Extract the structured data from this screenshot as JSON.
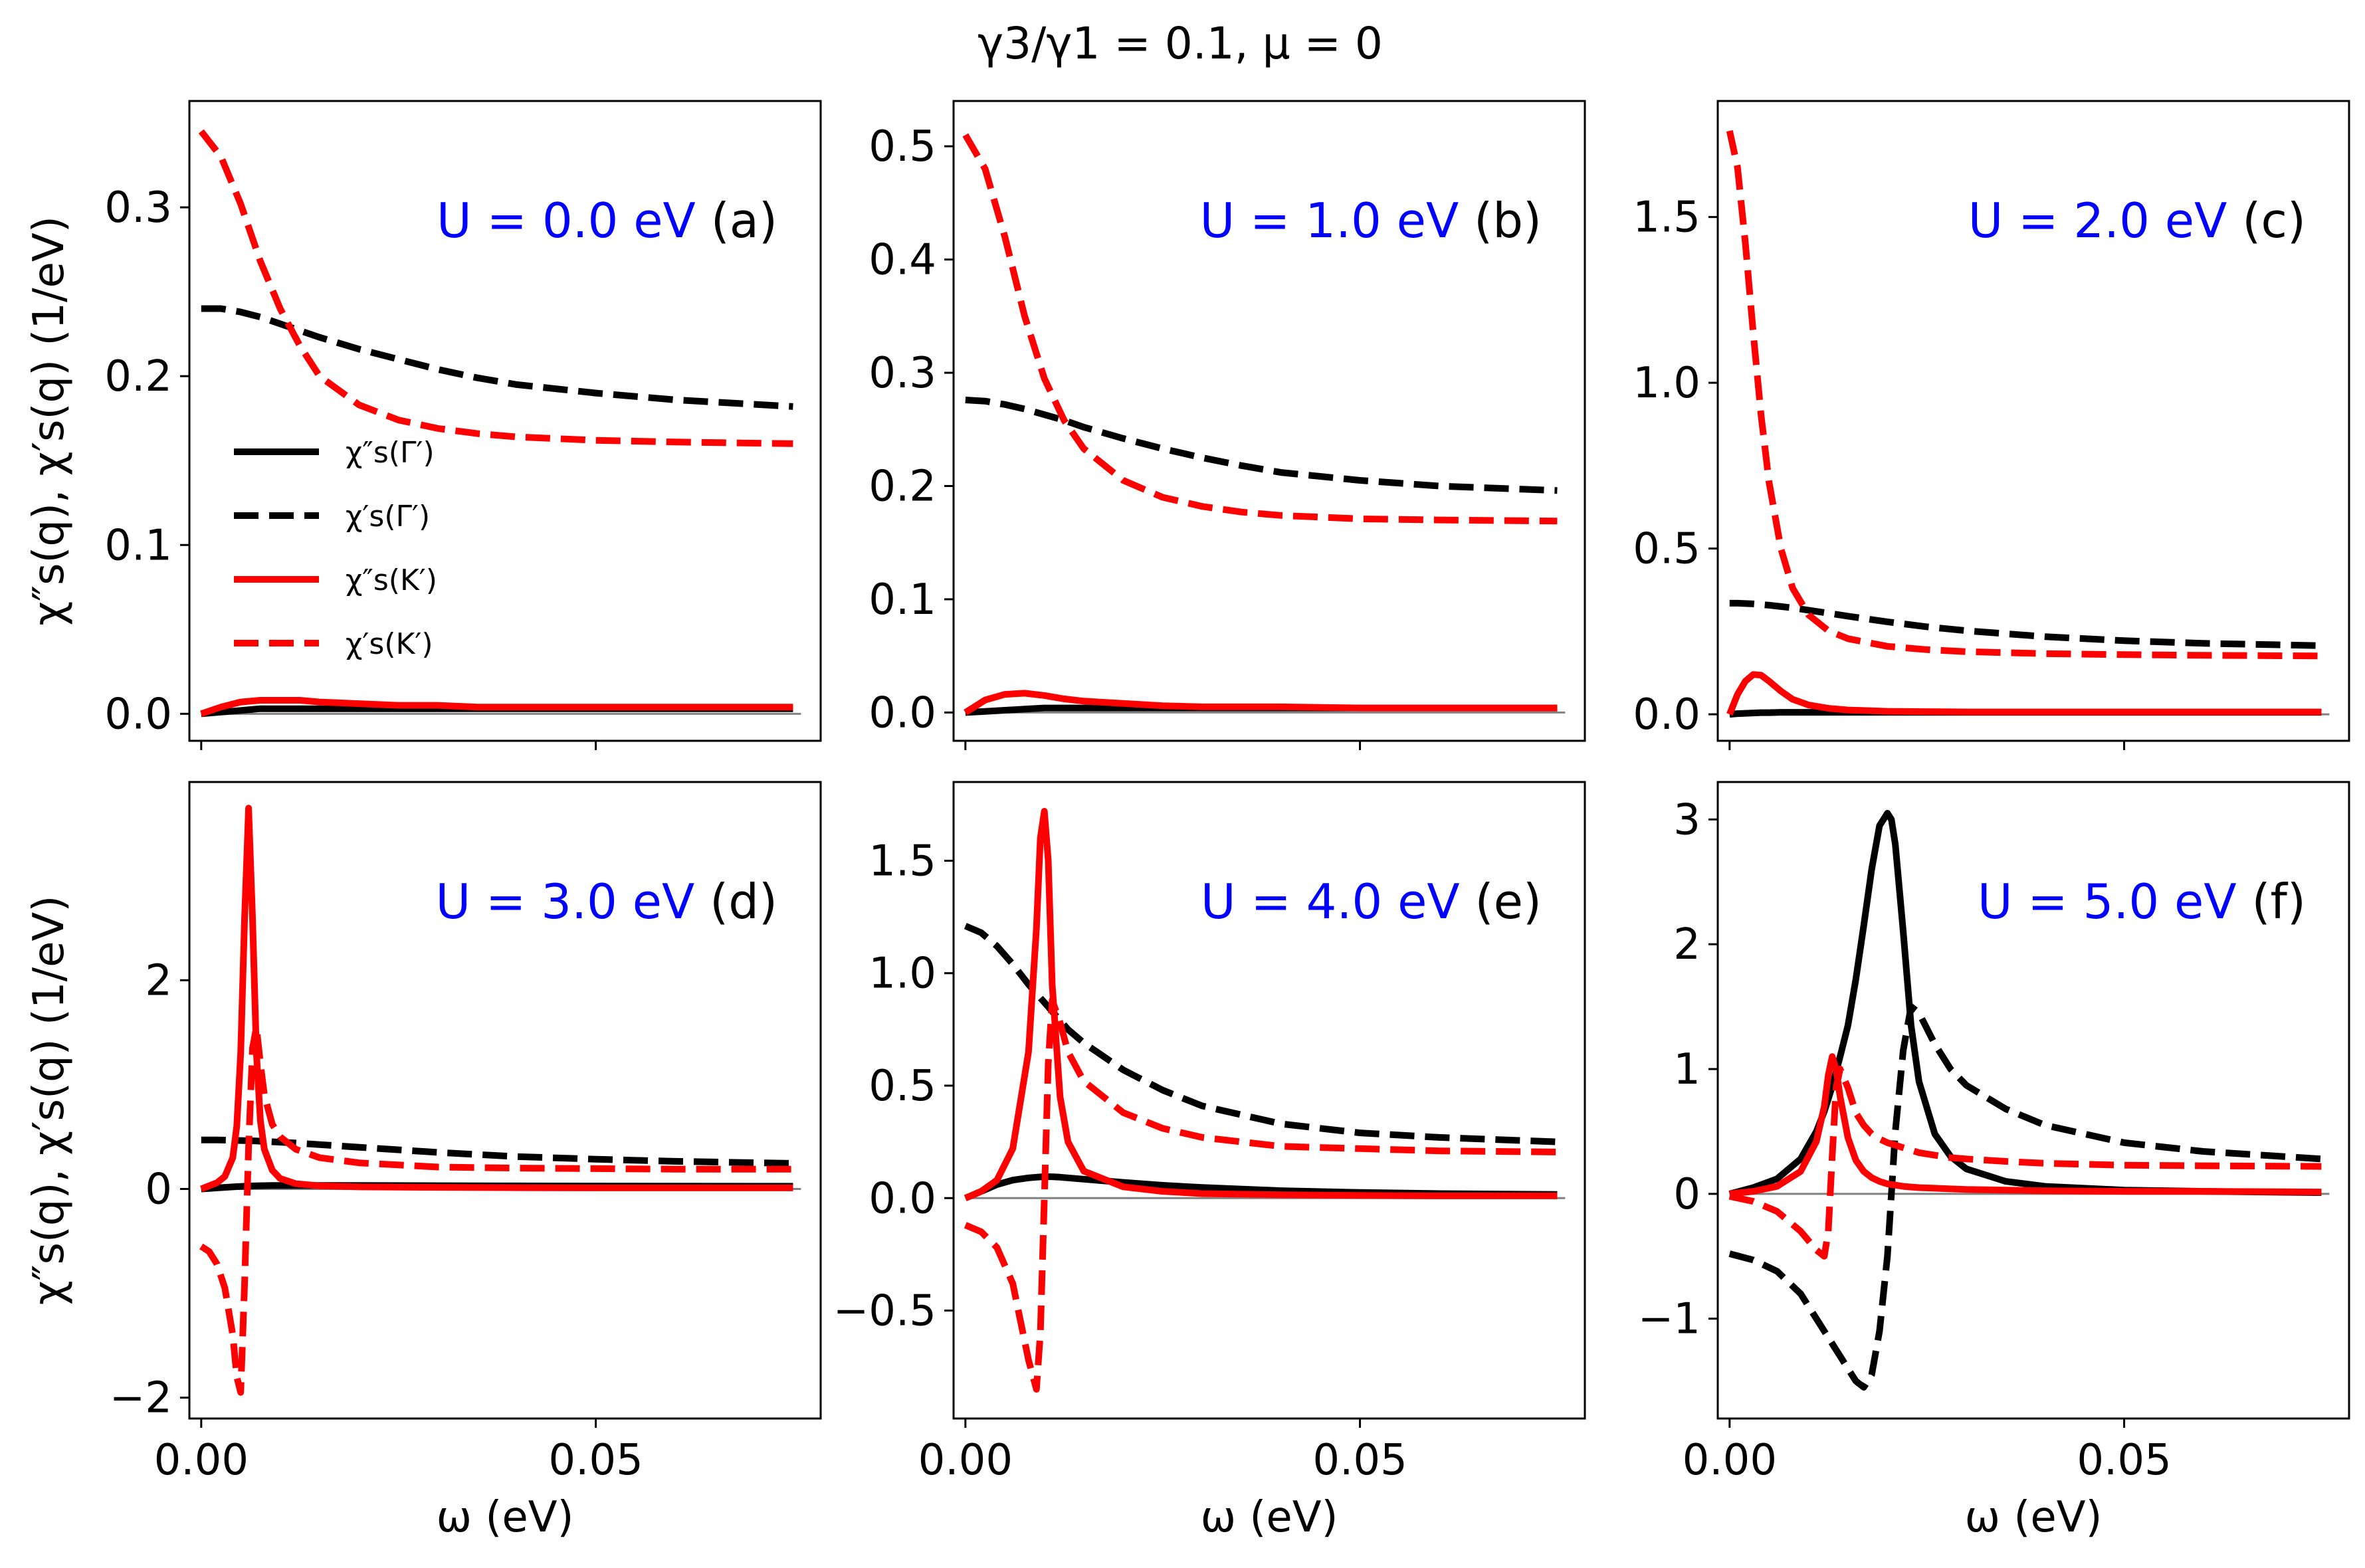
{
  "figure": {
    "suptitle": "γ3/γ1 = 0.1, μ = 0",
    "x_label": "ω (eV)",
    "y_label": "χ″s(q), χ′s(q) (1/eV)"
  },
  "colors": {
    "gamma": "#000000",
    "kprime": "#ff0000",
    "u_label": "#0000ff",
    "zero_line": "#808080"
  },
  "legend": {
    "entries": [
      {
        "label": "χ″s(Γ′)",
        "color": "#000000",
        "style": "solid"
      },
      {
        "label": "χ′s(Γ′)",
        "color": "#000000",
        "style": "dashed"
      },
      {
        "label": "χ″s(K′)",
        "color": "#ff0000",
        "style": "solid"
      },
      {
        "label": "χ′s(K′)",
        "color": "#ff0000",
        "style": "dashed"
      }
    ]
  },
  "chart_data": [
    {
      "type": "line",
      "panel": "(a)",
      "u_label": "U = 0.0 eV",
      "xlim": [
        -0.0015,
        0.0785
      ],
      "ylim": [
        -0.016,
        0.363
      ],
      "yticks": [
        0.0,
        0.1,
        0.2,
        0.3
      ],
      "ytick_labels": [
        "0.0",
        "0.1",
        "0.2",
        "0.3"
      ],
      "xticks": [
        0.0,
        0.05
      ],
      "xtick_labels": [
        "0.00",
        "0.05"
      ],
      "x": [
        0,
        0.0025,
        0.005,
        0.0075,
        0.01,
        0.0125,
        0.015,
        0.02,
        0.025,
        0.03,
        0.035,
        0.04,
        0.05,
        0.06,
        0.075
      ],
      "series": [
        {
          "name": "χ″s(Γ′)",
          "style": "solid",
          "color": "#000000",
          "values": [
            0,
            0.001,
            0.002,
            0.003,
            0.003,
            0.003,
            0.003,
            0.003,
            0.003,
            0.003,
            0.003,
            0.003,
            0.003,
            0.003,
            0.003
          ]
        },
        {
          "name": "χ′s(Γ′)",
          "style": "dashed",
          "color": "#000000",
          "values": [
            0.24,
            0.24,
            0.238,
            0.235,
            0.231,
            0.227,
            0.223,
            0.216,
            0.21,
            0.204,
            0.199,
            0.195,
            0.19,
            0.186,
            0.182
          ]
        },
        {
          "name": "χ″s(K′)",
          "style": "solid",
          "color": "#ff0000",
          "values": [
            0,
            0.004,
            0.007,
            0.008,
            0.008,
            0.008,
            0.007,
            0.006,
            0.005,
            0.005,
            0.004,
            0.004,
            0.004,
            0.004,
            0.004
          ]
        },
        {
          "name": "χ′s(K′)",
          "style": "dashed",
          "color": "#ff0000",
          "values": [
            0.345,
            0.33,
            0.302,
            0.268,
            0.24,
            0.218,
            0.2,
            0.183,
            0.174,
            0.169,
            0.166,
            0.164,
            0.162,
            0.161,
            0.16
          ]
        }
      ]
    },
    {
      "type": "line",
      "panel": "(b)",
      "u_label": "U = 1.0 eV",
      "xlim": [
        -0.0015,
        0.0785
      ],
      "ylim": [
        -0.025,
        0.54
      ],
      "yticks": [
        0.0,
        0.1,
        0.2,
        0.3,
        0.4,
        0.5
      ],
      "ytick_labels": [
        "0.0",
        "0.1",
        "0.2",
        "0.3",
        "0.4",
        "0.5"
      ],
      "xticks": [
        0.0,
        0.05
      ],
      "xtick_labels": [
        "0.00",
        "0.05"
      ],
      "x": [
        0,
        0.0025,
        0.005,
        0.0075,
        0.01,
        0.0125,
        0.015,
        0.02,
        0.025,
        0.03,
        0.035,
        0.04,
        0.05,
        0.06,
        0.075
      ],
      "series": [
        {
          "name": "χ″s(Γ′)",
          "style": "solid",
          "color": "#000000",
          "values": [
            0,
            0.001,
            0.002,
            0.003,
            0.004,
            0.004,
            0.004,
            0.004,
            0.004,
            0.004,
            0.004,
            0.004,
            0.004,
            0.004,
            0.004
          ]
        },
        {
          "name": "χ′s(Γ′)",
          "style": "dashed",
          "color": "#000000",
          "values": [
            0.276,
            0.275,
            0.272,
            0.268,
            0.263,
            0.258,
            0.252,
            0.242,
            0.233,
            0.225,
            0.218,
            0.212,
            0.205,
            0.2,
            0.196
          ]
        },
        {
          "name": "χ″s(K′)",
          "style": "solid",
          "color": "#ff0000",
          "values": [
            0,
            0.011,
            0.016,
            0.017,
            0.015,
            0.012,
            0.01,
            0.008,
            0.006,
            0.005,
            0.005,
            0.005,
            0.004,
            0.004,
            0.004
          ]
        },
        {
          "name": "χ′s(K′)",
          "style": "dashed",
          "color": "#ff0000",
          "values": [
            0.51,
            0.48,
            0.42,
            0.35,
            0.295,
            0.258,
            0.233,
            0.205,
            0.19,
            0.182,
            0.177,
            0.174,
            0.171,
            0.17,
            0.169
          ]
        }
      ]
    },
    {
      "type": "line",
      "panel": "(c)",
      "u_label": "U = 2.0 eV",
      "xlim": [
        -0.0015,
        0.0785
      ],
      "ylim": [
        -0.08,
        1.85
      ],
      "yticks": [
        0.0,
        0.5,
        1.0,
        1.5
      ],
      "ytick_labels": [
        "0.0",
        "0.5",
        "1.0",
        "1.5"
      ],
      "xticks": [
        0.0,
        0.05
      ],
      "xtick_labels": [
        "0.00",
        "0.05"
      ],
      "x": [
        0,
        0.001,
        0.002,
        0.003,
        0.004,
        0.005,
        0.0065,
        0.008,
        0.01,
        0.0125,
        0.015,
        0.02,
        0.025,
        0.03,
        0.04,
        0.05,
        0.06,
        0.075
      ],
      "series": [
        {
          "name": "χ″s(Γ′)",
          "style": "solid",
          "color": "#000000",
          "values": [
            0,
            0.002,
            0.003,
            0.004,
            0.005,
            0.005,
            0.006,
            0.006,
            0.006,
            0.006,
            0.006,
            0.006,
            0.006,
            0.006,
            0.006,
            0.006,
            0.006,
            0.006
          ]
        },
        {
          "name": "χ′s(Γ′)",
          "style": "dashed",
          "color": "#000000",
          "values": [
            0.335,
            0.335,
            0.334,
            0.333,
            0.331,
            0.329,
            0.325,
            0.321,
            0.314,
            0.305,
            0.296,
            0.279,
            0.264,
            0.252,
            0.234,
            0.222,
            0.214,
            0.207
          ]
        },
        {
          "name": "χ″s(K′)",
          "style": "solid",
          "color": "#ff0000",
          "values": [
            0,
            0.06,
            0.1,
            0.12,
            0.118,
            0.1,
            0.07,
            0.045,
            0.028,
            0.018,
            0.013,
            0.009,
            0.008,
            0.007,
            0.007,
            0.007,
            0.007,
            0.007
          ]
        },
        {
          "name": "χ′s(K′)",
          "style": "dashed",
          "color": "#ff0000",
          "values": [
            1.76,
            1.65,
            1.42,
            1.15,
            0.9,
            0.7,
            0.5,
            0.38,
            0.3,
            0.252,
            0.228,
            0.205,
            0.195,
            0.189,
            0.183,
            0.18,
            0.178,
            0.176
          ]
        }
      ]
    },
    {
      "type": "line",
      "panel": "(d)",
      "u_label": "U = 3.0 eV",
      "xlim": [
        -0.0015,
        0.0785
      ],
      "ylim": [
        -2.2,
        3.9
      ],
      "yticks": [
        -2,
        0,
        2
      ],
      "ytick_labels": [
        "−2",
        "0",
        "2"
      ],
      "xticks": [
        0.0,
        0.05
      ],
      "xtick_labels": [
        "0.00",
        "0.05"
      ],
      "x": [
        0,
        0.001,
        0.002,
        0.003,
        0.004,
        0.0045,
        0.005,
        0.0055,
        0.006,
        0.0065,
        0.007,
        0.0075,
        0.008,
        0.009,
        0.01,
        0.012,
        0.015,
        0.02,
        0.03,
        0.04,
        0.05,
        0.06,
        0.075
      ],
      "series": [
        {
          "name": "χ″s(Γ′)",
          "style": "solid",
          "color": "#000000",
          "values": [
            0,
            0.005,
            0.01,
            0.015,
            0.02,
            0.022,
            0.024,
            0.026,
            0.028,
            0.029,
            0.03,
            0.031,
            0.032,
            0.033,
            0.034,
            0.034,
            0.034,
            0.033,
            0.031,
            0.029,
            0.028,
            0.027,
            0.026
          ]
        },
        {
          "name": "χ′s(Γ′)",
          "style": "dashed",
          "color": "#000000",
          "values": [
            0.47,
            0.47,
            0.47,
            0.468,
            0.466,
            0.465,
            0.464,
            0.463,
            0.462,
            0.461,
            0.46,
            0.458,
            0.456,
            0.452,
            0.448,
            0.44,
            0.425,
            0.4,
            0.35,
            0.31,
            0.285,
            0.265,
            0.245
          ]
        },
        {
          "name": "χ″s(K′)",
          "style": "solid",
          "color": "#ff0000",
          "values": [
            0,
            0.03,
            0.06,
            0.12,
            0.3,
            0.6,
            1.3,
            2.6,
            3.65,
            2.6,
            1.3,
            0.65,
            0.38,
            0.18,
            0.1,
            0.05,
            0.03,
            0.02,
            0.015,
            0.012,
            0.01,
            0.01,
            0.01
          ]
        },
        {
          "name": "χ′s(K′)",
          "style": "dashed",
          "color": "#ff0000",
          "values": [
            -0.55,
            -0.6,
            -0.72,
            -0.95,
            -1.4,
            -1.8,
            -1.95,
            -0.9,
            0.4,
            1.35,
            1.55,
            1.2,
            0.9,
            0.62,
            0.5,
            0.38,
            0.3,
            0.25,
            0.21,
            0.2,
            0.195,
            0.19,
            0.19
          ]
        }
      ]
    },
    {
      "type": "line",
      "panel": "(e)",
      "u_label": "U = 4.0 eV",
      "xlim": [
        -0.0015,
        0.0785
      ],
      "ylim": [
        -0.98,
        1.85
      ],
      "yticks": [
        -0.5,
        0.0,
        0.5,
        1.0,
        1.5
      ],
      "ytick_labels": [
        "−0.5",
        "0.0",
        "0.5",
        "1.0",
        "1.5"
      ],
      "xticks": [
        0.0,
        0.05
      ],
      "xtick_labels": [
        "0.00",
        "0.05"
      ],
      "x": [
        0,
        0.002,
        0.004,
        0.006,
        0.008,
        0.009,
        0.0095,
        0.01,
        0.0105,
        0.011,
        0.012,
        0.013,
        0.015,
        0.02,
        0.025,
        0.03,
        0.04,
        0.05,
        0.06,
        0.075
      ],
      "series": [
        {
          "name": "χ″s(Γ′)",
          "style": "solid",
          "color": "#000000",
          "values": [
            0,
            0.03,
            0.06,
            0.08,
            0.09,
            0.093,
            0.094,
            0.095,
            0.095,
            0.095,
            0.093,
            0.09,
            0.084,
            0.07,
            0.057,
            0.047,
            0.033,
            0.025,
            0.02,
            0.016
          ]
        },
        {
          "name": "χ′s(Γ′)",
          "style": "dashed",
          "color": "#000000",
          "values": [
            1.21,
            1.18,
            1.12,
            1.04,
            0.95,
            0.91,
            0.89,
            0.87,
            0.85,
            0.83,
            0.79,
            0.75,
            0.69,
            0.57,
            0.48,
            0.41,
            0.33,
            0.29,
            0.27,
            0.25
          ]
        },
        {
          "name": "χ″s(K′)",
          "style": "solid",
          "color": "#ff0000",
          "values": [
            0,
            0.03,
            0.08,
            0.22,
            0.65,
            1.2,
            1.6,
            1.72,
            1.5,
            0.95,
            0.45,
            0.25,
            0.12,
            0.05,
            0.03,
            0.02,
            0.015,
            0.012,
            0.01,
            0.01
          ]
        },
        {
          "name": "χ′s(K′)",
          "style": "dashed",
          "color": "#ff0000",
          "values": [
            -0.12,
            -0.15,
            -0.22,
            -0.38,
            -0.72,
            -0.85,
            -0.6,
            0.0,
            0.6,
            0.88,
            0.78,
            0.65,
            0.52,
            0.38,
            0.31,
            0.27,
            0.23,
            0.22,
            0.21,
            0.205
          ]
        }
      ]
    },
    {
      "type": "line",
      "panel": "(f)",
      "u_label": "U = 5.0 eV",
      "xlim": [
        -0.0015,
        0.0785
      ],
      "ylim": [
        -1.8,
        3.3
      ],
      "yticks": [
        -1,
        0,
        1,
        2,
        3
      ],
      "ytick_labels": [
        "−1",
        "0",
        "1",
        "2",
        "3"
      ],
      "xticks": [
        0.0,
        0.05
      ],
      "xtick_labels": [
        "0.00",
        "0.05"
      ],
      "x": [
        0,
        0.003,
        0.006,
        0.009,
        0.011,
        0.012,
        0.0125,
        0.013,
        0.0135,
        0.014,
        0.015,
        0.016,
        0.017,
        0.018,
        0.019,
        0.02,
        0.0205,
        0.021,
        0.022,
        0.023,
        0.024,
        0.026,
        0.028,
        0.03,
        0.035,
        0.04,
        0.05,
        0.06,
        0.075
      ],
      "series": [
        {
          "name": "χ″s(Γ′)",
          "style": "solid",
          "color": "#000000",
          "values": [
            0,
            0.05,
            0.12,
            0.28,
            0.5,
            0.66,
            0.76,
            0.86,
            0.98,
            1.1,
            1.35,
            1.72,
            2.15,
            2.6,
            2.95,
            3.05,
            3.0,
            2.8,
            2.1,
            1.35,
            0.9,
            0.48,
            0.3,
            0.2,
            0.1,
            0.06,
            0.03,
            0.02,
            0.01
          ]
        },
        {
          "name": "χ′s(Γ′)",
          "style": "dashed",
          "color": "#000000",
          "values": [
            -0.48,
            -0.53,
            -0.62,
            -0.8,
            -1.0,
            -1.1,
            -1.15,
            -1.2,
            -1.25,
            -1.3,
            -1.4,
            -1.5,
            -1.55,
            -1.45,
            -1.1,
            -0.5,
            0.0,
            0.5,
            1.15,
            1.5,
            1.45,
            1.2,
            1.0,
            0.87,
            0.68,
            0.55,
            0.41,
            0.34,
            0.28
          ]
        },
        {
          "name": "χ″s(K′)",
          "style": "solid",
          "color": "#ff0000",
          "values": [
            0,
            0.02,
            0.06,
            0.18,
            0.42,
            0.7,
            0.95,
            1.1,
            1.0,
            0.78,
            0.45,
            0.27,
            0.18,
            0.13,
            0.1,
            0.08,
            0.075,
            0.07,
            0.06,
            0.055,
            0.05,
            0.045,
            0.04,
            0.035,
            0.03,
            0.025,
            0.02,
            0.02,
            0.015
          ]
        },
        {
          "name": "χ′s(K′)",
          "style": "dashed",
          "color": "#ff0000",
          "values": [
            -0.02,
            -0.06,
            -0.14,
            -0.3,
            -0.45,
            -0.5,
            -0.3,
            0.3,
            0.85,
            1.0,
            0.85,
            0.65,
            0.55,
            0.48,
            0.44,
            0.41,
            0.4,
            0.39,
            0.37,
            0.35,
            0.33,
            0.31,
            0.29,
            0.28,
            0.26,
            0.245,
            0.23,
            0.225,
            0.22
          ]
        }
      ]
    }
  ]
}
